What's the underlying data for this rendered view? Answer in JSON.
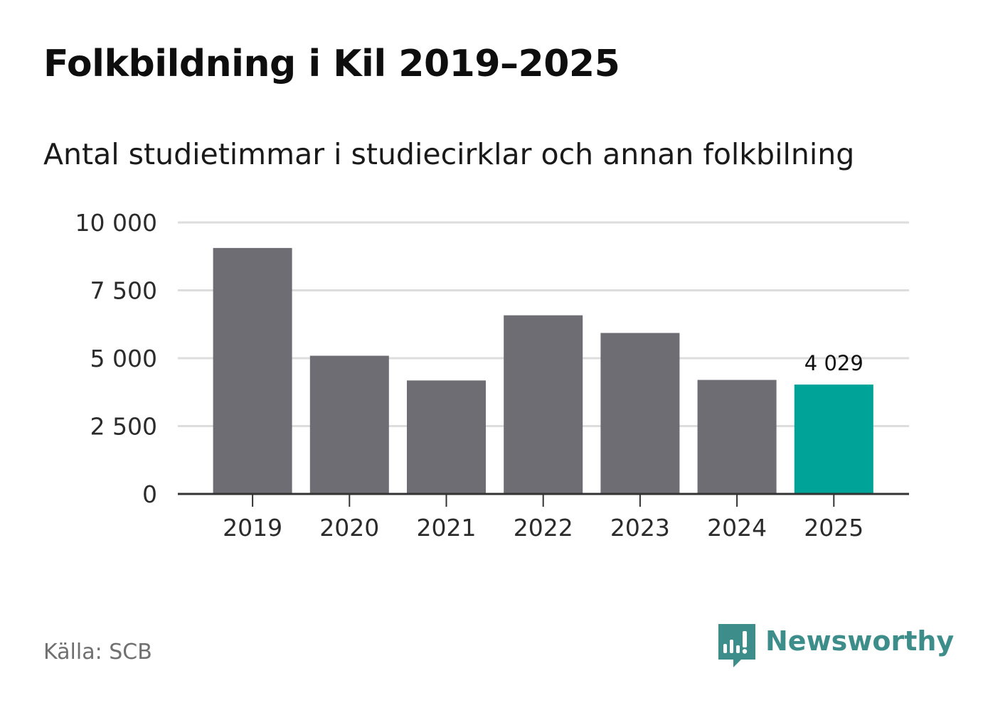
{
  "header": {
    "title": "Folkbildning i Kil 2019–2025",
    "subtitle": "Antal studietimmar i studiecirklar och annan folkbilning"
  },
  "footer": {
    "source": "Källa: SCB",
    "brand": "Newsworthy",
    "brand_icon": "newsworthy-logo-icon"
  },
  "colors": {
    "bar": "#6e6d73",
    "highlight": "#00a398",
    "grid": "#dddddd",
    "axis": "#333333",
    "brand": "#3d8e8b"
  },
  "chart_data": {
    "type": "bar",
    "title": "Folkbildning i Kil 2019–2025",
    "subtitle": "Antal studietimmar i studiecirklar och annan folkbilning",
    "xlabel": "",
    "ylabel": "",
    "categories": [
      "2019",
      "2020",
      "2021",
      "2022",
      "2023",
      "2024",
      "2025"
    ],
    "values": [
      9060,
      5090,
      4180,
      6580,
      5930,
      4200,
      4029
    ],
    "ylim": [
      0,
      10000
    ],
    "yticks": [
      0,
      2500,
      5000,
      7500,
      10000
    ],
    "ytick_labels": [
      "0",
      "2 500",
      "5 000",
      "7 500",
      "10 000"
    ],
    "grid": true,
    "highlight_index": 6,
    "annotation": {
      "index": 6,
      "label": "4 029"
    }
  }
}
